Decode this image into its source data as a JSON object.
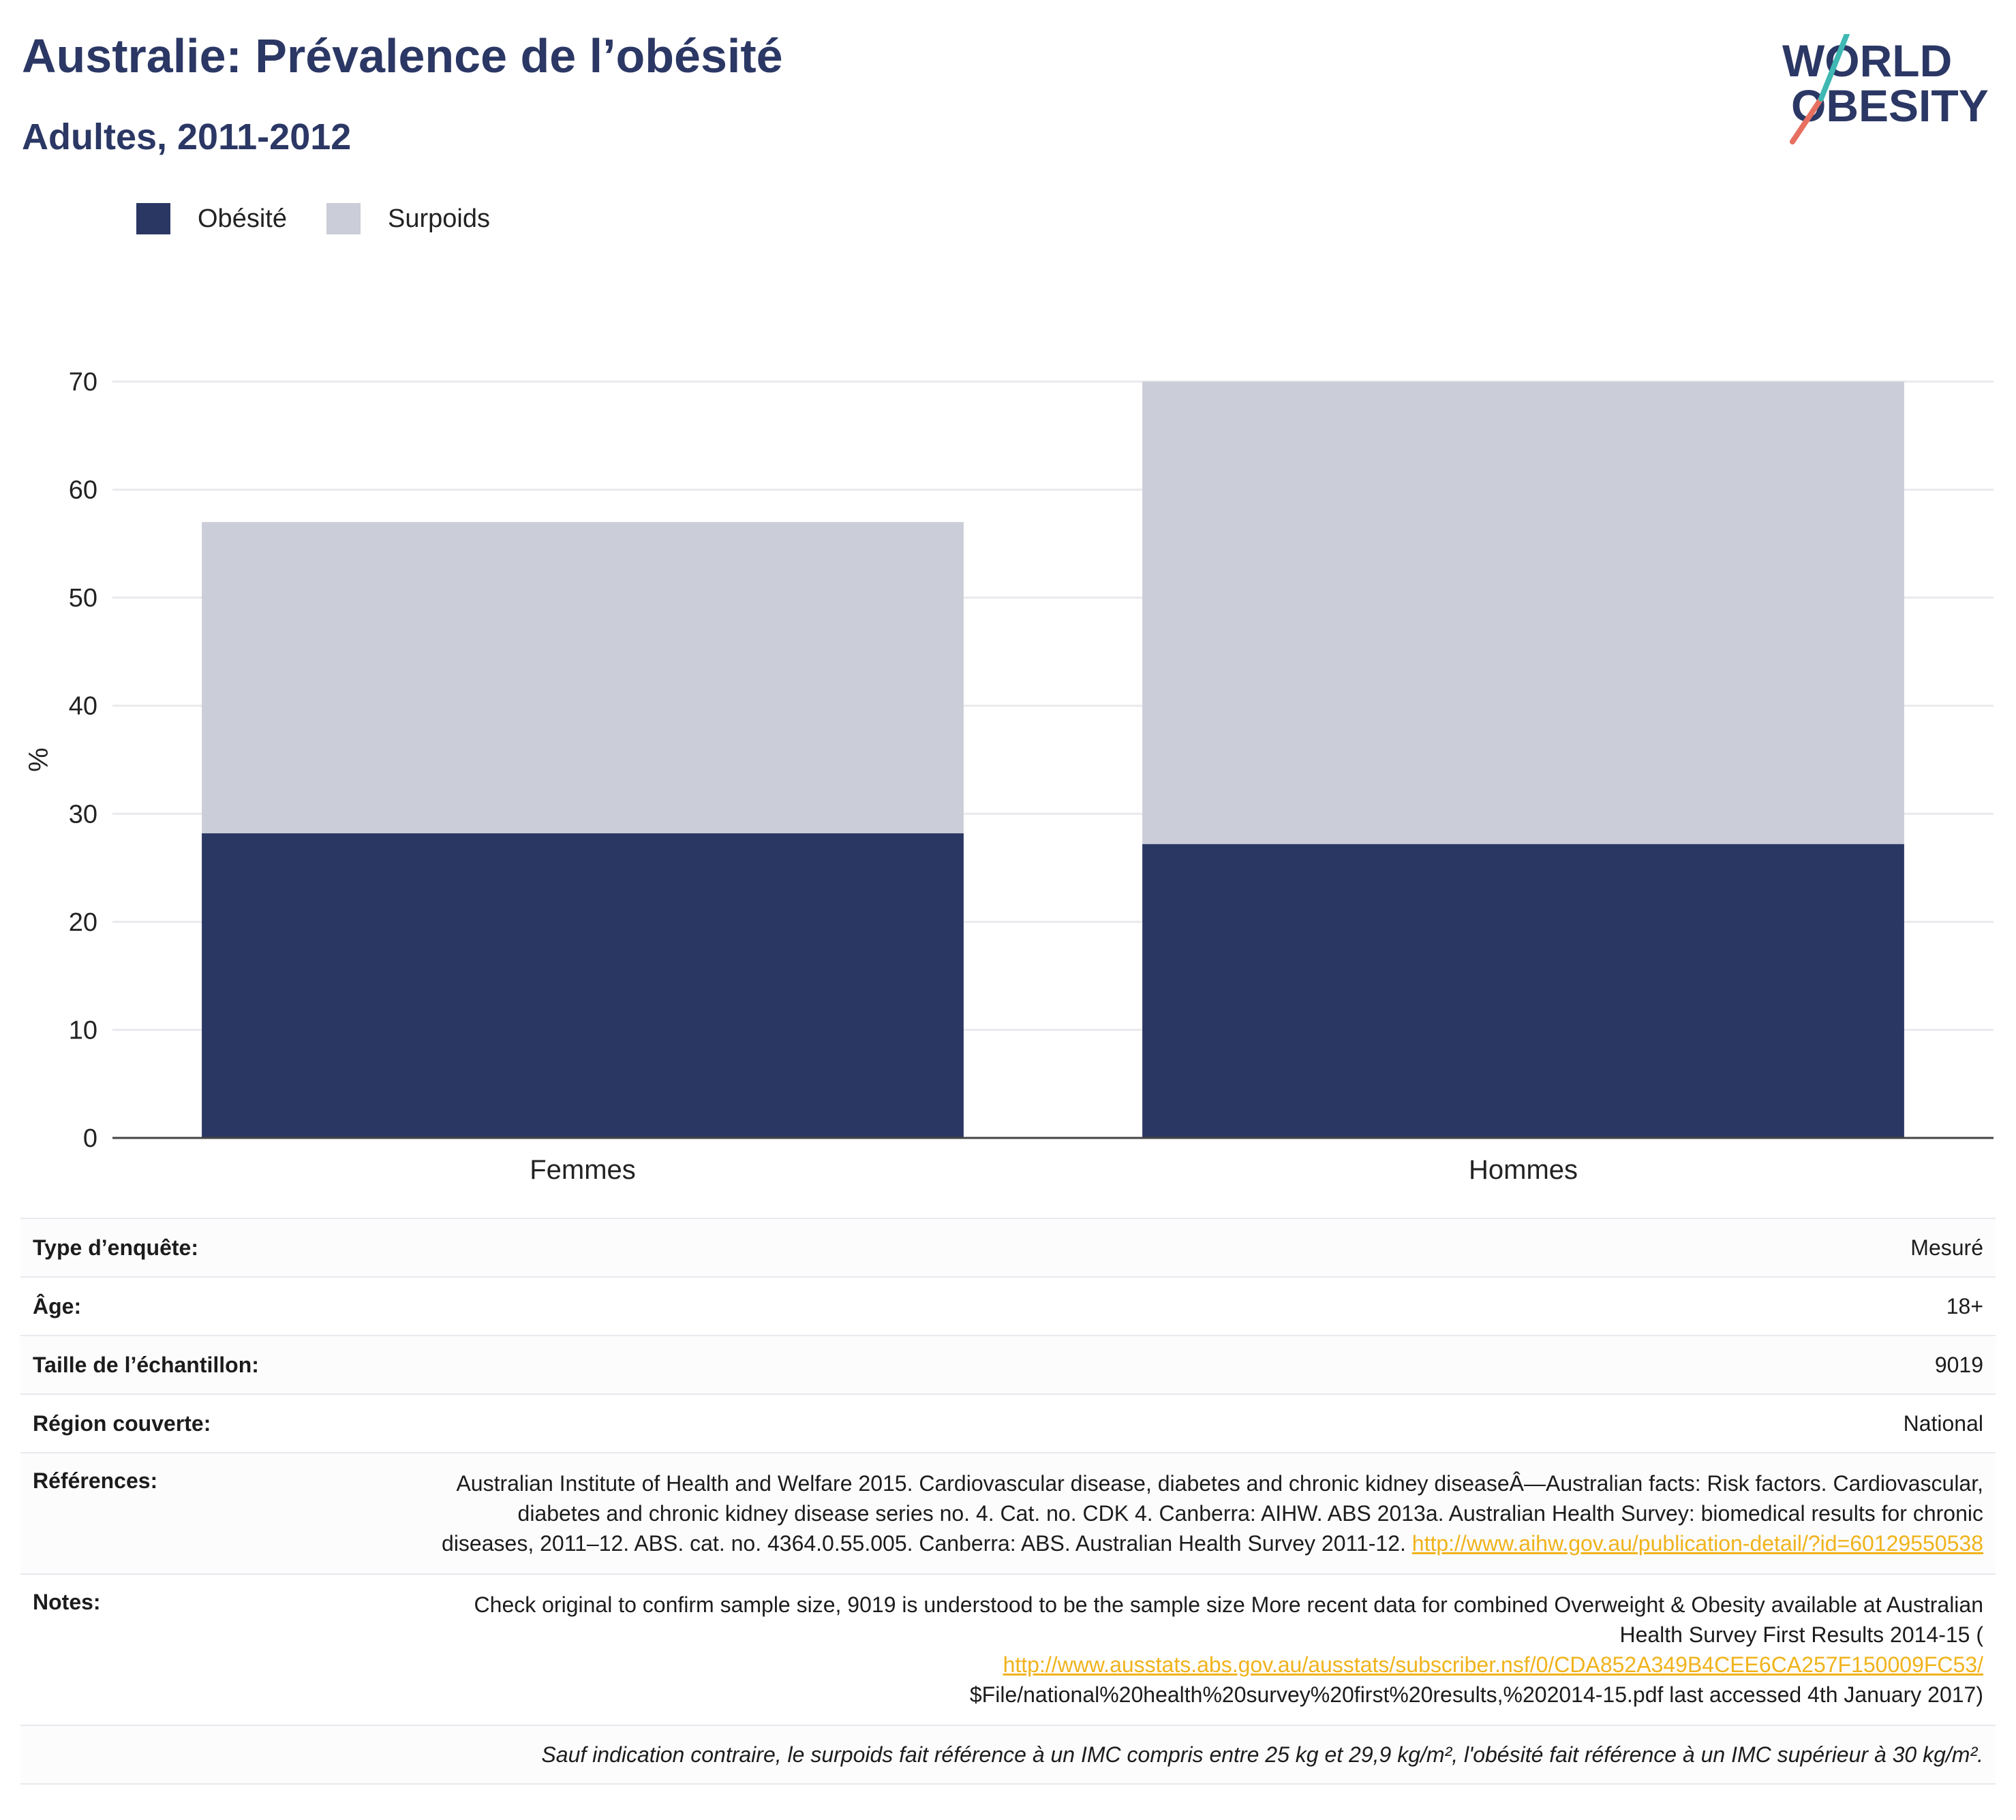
{
  "header": {
    "title": "Australie: Prévalence de l’obésité",
    "subtitle": "Adultes, 2011-2012",
    "logo_line1": "WORLD",
    "logo_line2": "OBESITY"
  },
  "legend": {
    "items": [
      {
        "label": "Obésité",
        "color": "#2b3763"
      },
      {
        "label": "Surpoids",
        "color": "#cbcdd8"
      }
    ]
  },
  "chart_data": {
    "type": "bar",
    "stacked": true,
    "categories": [
      "Femmes",
      "Hommes"
    ],
    "series": [
      {
        "name": "Obésité",
        "values": [
          28.2,
          27.2
        ],
        "color": "#2b3763"
      },
      {
        "name": "Surpoids",
        "values": [
          28.8,
          42.8
        ],
        "color": "#cbcdd8"
      }
    ],
    "totals": [
      57.0,
      70.0
    ],
    "ylabel": "%",
    "ylim": [
      0,
      70
    ],
    "yticks": [
      0,
      10,
      20,
      30,
      40,
      50,
      60,
      70
    ],
    "grid": true,
    "legend_position": "top-left"
  },
  "info": {
    "survey_type": {
      "label": "Type d’enquête:",
      "value": "Mesuré"
    },
    "age": {
      "label": "Âge:",
      "value": "18+"
    },
    "sample_size": {
      "label": "Taille de l’échantillon:",
      "value": "9019"
    },
    "region": {
      "label": "Région couverte:",
      "value": "National"
    },
    "references": {
      "label": "Références:",
      "text": "Australian Institute of Health and Welfare 2015. Cardiovascular disease, diabetes and chronic kidney diseaseÂ—Australian facts: Risk factors. Cardiovascular, diabetes and chronic kidney disease series no. 4. Cat. no. CDK 4. Canberra: AIHW. ABS 2013a. Australian Health Survey: biomedical results for chronic diseases, 2011–12. ABS. cat. no. 4364.0.55.005. Canberra: ABS. Australian Health Survey 2011-12.",
      "link": "http://www.aihw.gov.au/publication-detail/?id=60129550538"
    },
    "notes": {
      "label": "Notes:",
      "text": "Check original to confirm sample size, 9019 is understood to be the sample size More recent data for combined Overweight & Obesity available at Australian Health Survey First Results 2014-15 (",
      "link": "http://www.ausstats.abs.gov.au/ausstats/subscriber.nsf/0/CDA852A349B4CEE6CA257F150009FC53/",
      "text_after": "$File/national%20health%20survey%20first%20results,%202014-15.pdf last accessed 4th January 2017)"
    },
    "footnote": "Sauf indication contraire, le surpoids fait référence à un IMC compris entre 25 kg et 29,9 kg/m², l'obésité fait référence à un IMC supérieur à 30 kg/m²."
  }
}
